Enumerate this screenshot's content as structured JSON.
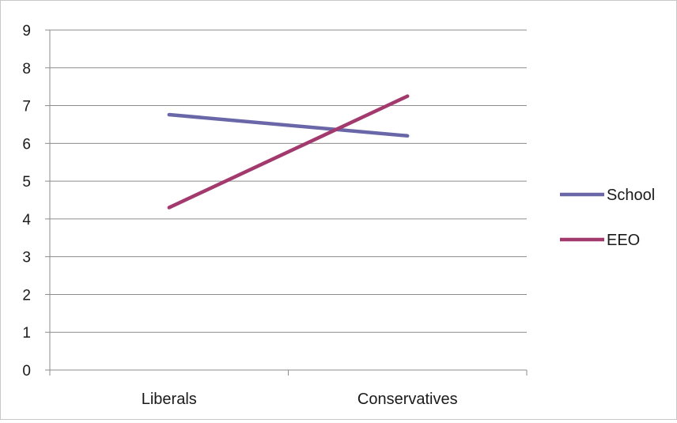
{
  "chart_data": {
    "type": "line",
    "title": "",
    "xlabel": "",
    "ylabel": "",
    "categories": [
      "Liberals",
      "Conservatives"
    ],
    "ylim": [
      0,
      9
    ],
    "yticks": [
      "0",
      "1",
      "2",
      "3",
      "4",
      "5",
      "6",
      "7",
      "8",
      "9"
    ],
    "grid": true,
    "legend_position": "right",
    "series": [
      {
        "name": "School",
        "values": [
          6.76,
          6.2
        ],
        "color": "#6A67A8"
      },
      {
        "name": "EEO",
        "values": [
          4.3,
          7.25
        ],
        "color": "#A23A6E"
      }
    ]
  }
}
